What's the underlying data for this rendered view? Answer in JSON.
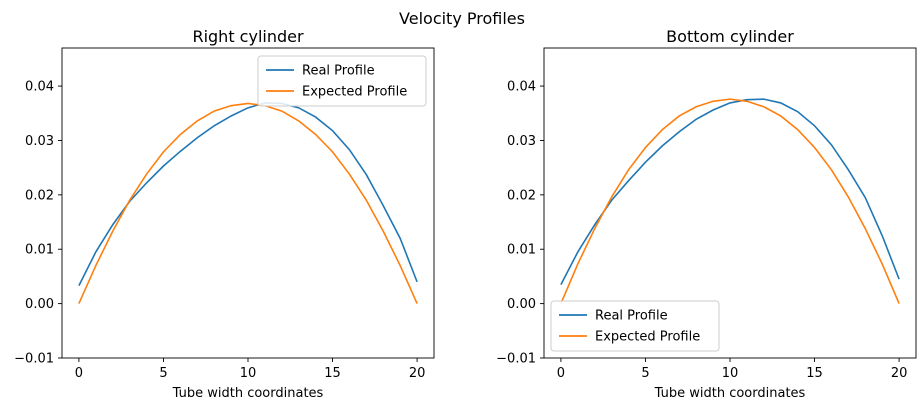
{
  "figure": {
    "suptitle": "Velocity Profiles"
  },
  "chart_data": [
    {
      "type": "line",
      "title": "Right cylinder",
      "xlabel": "Tube width coordinates",
      "ylabel": "",
      "xlim": [
        -1,
        21
      ],
      "ylim": [
        -0.01,
        0.047
      ],
      "xticks": [
        0,
        5,
        10,
        15,
        20
      ],
      "xtick_labels": [
        "0",
        "5",
        "10",
        "15",
        "20"
      ],
      "yticks": [
        -0.01,
        0.0,
        0.01,
        0.02,
        0.03,
        0.04
      ],
      "ytick_labels": [
        "−0.01",
        "0.00",
        "0.01",
        "0.02",
        "0.03",
        "0.04"
      ],
      "grid": false,
      "legend": "upper-right",
      "x": [
        0,
        1,
        2,
        3,
        4,
        5,
        6,
        7,
        8,
        9,
        10,
        11,
        12,
        13,
        14,
        15,
        16,
        17,
        18,
        19,
        20
      ],
      "series": [
        {
          "name": "Real Profile",
          "color": "#1f77b4",
          "values": [
            0.0033,
            0.0095,
            0.0145,
            0.0188,
            0.0222,
            0.0253,
            0.028,
            0.0305,
            0.0327,
            0.0345,
            0.036,
            0.0369,
            0.0368,
            0.036,
            0.0343,
            0.0318,
            0.0283,
            0.0237,
            0.018,
            0.012,
            0.004
          ]
        },
        {
          "name": "Expected Profile",
          "color": "#ff7f0e",
          "values": [
            0.0,
            0.007,
            0.0133,
            0.019,
            0.0238,
            0.0279,
            0.0311,
            0.0336,
            0.0354,
            0.0364,
            0.0368,
            0.0364,
            0.0354,
            0.0336,
            0.0311,
            0.0279,
            0.0238,
            0.019,
            0.0133,
            0.007,
            0.0
          ]
        }
      ]
    },
    {
      "type": "line",
      "title": "Bottom cylinder",
      "xlabel": "Tube width coordinates",
      "ylabel": "",
      "xlim": [
        -1,
        21
      ],
      "ylim": [
        -0.01,
        0.047
      ],
      "xticks": [
        0,
        5,
        10,
        15,
        20
      ],
      "xtick_labels": [
        "0",
        "5",
        "10",
        "15",
        "20"
      ],
      "yticks": [
        -0.01,
        0.0,
        0.01,
        0.02,
        0.03,
        0.04
      ],
      "ytick_labels": [
        "−0.01",
        "0.00",
        "0.01",
        "0.02",
        "0.03",
        "0.04"
      ],
      "grid": false,
      "legend": "lower-left",
      "x": [
        0,
        1,
        2,
        3,
        4,
        5,
        6,
        7,
        8,
        9,
        10,
        11,
        12,
        13,
        14,
        15,
        16,
        17,
        18,
        19,
        20
      ],
      "series": [
        {
          "name": "Real Profile",
          "color": "#1f77b4",
          "values": [
            0.0035,
            0.0095,
            0.0145,
            0.019,
            0.0226,
            0.026,
            0.029,
            0.0316,
            0.0339,
            0.0356,
            0.0369,
            0.0375,
            0.0376,
            0.0369,
            0.0353,
            0.0327,
            0.0292,
            0.0246,
            0.0195,
            0.0125,
            0.0045
          ]
        },
        {
          "name": "Expected Profile",
          "color": "#ff7f0e",
          "values": [
            0.0,
            0.0073,
            0.0138,
            0.0196,
            0.0246,
            0.0287,
            0.032,
            0.0345,
            0.0362,
            0.0372,
            0.0376,
            0.0372,
            0.0362,
            0.0345,
            0.032,
            0.0287,
            0.0246,
            0.0196,
            0.0138,
            0.0073,
            0.0
          ]
        }
      ]
    }
  ]
}
